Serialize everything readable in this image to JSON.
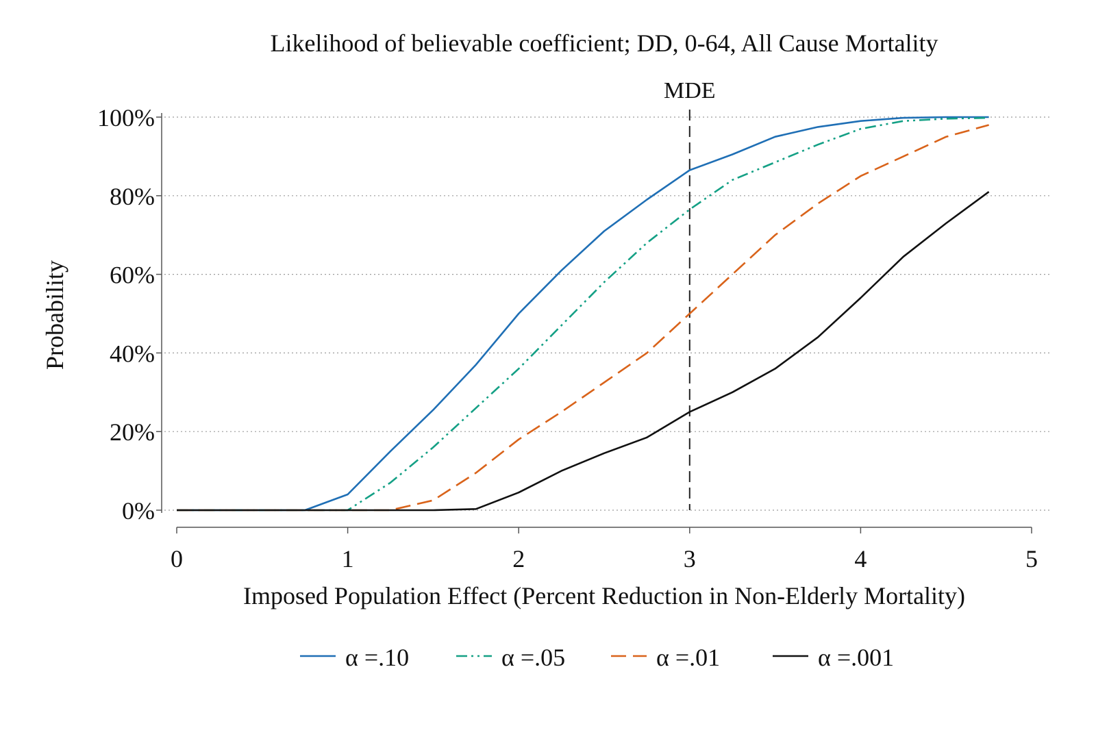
{
  "chart_data": {
    "type": "line",
    "title": "Likelihood of believable coefficient; DD, 0-64, All Cause Mortality",
    "xlabel": "Imposed Population Effect (Percent Reduction in Non-Elderly Mortality)",
    "ylabel": "Probability",
    "xlim": [
      0,
      5
    ],
    "ylim": [
      0,
      100
    ],
    "x_ticks": [
      "0",
      "1",
      "2",
      "3",
      "4",
      "5"
    ],
    "y_ticks": [
      "0%",
      "20%",
      "40%",
      "60%",
      "80%",
      "100%"
    ],
    "grid": true,
    "legend_position": "bottom",
    "annotations": [
      {
        "type": "vline",
        "x": 3,
        "label": "MDE"
      }
    ],
    "series": [
      {
        "name": "α =.10",
        "color": "#1f6fb5",
        "dash": "solid",
        "x": [
          0,
          0.25,
          0.5,
          0.75,
          1,
          1.25,
          1.5,
          1.75,
          2,
          2.25,
          2.5,
          2.75,
          3,
          3.25,
          3.5,
          3.75,
          4,
          4.25,
          4.5,
          4.75
        ],
        "values": [
          0,
          0,
          0,
          0,
          4,
          15,
          25.5,
          37,
          50,
          61,
          71,
          79,
          86.5,
          90.5,
          95,
          97.5,
          99,
          99.8,
          100,
          100
        ]
      },
      {
        "name": "α =.05",
        "color": "#14a085",
        "dash": "dash-dot-dot",
        "x": [
          0,
          0.25,
          0.5,
          0.75,
          1,
          1.25,
          1.5,
          1.75,
          2,
          2.25,
          2.5,
          2.75,
          3,
          3.25,
          3.5,
          3.75,
          4,
          4.25,
          4.5,
          4.75
        ],
        "values": [
          0,
          0,
          0,
          0,
          0,
          7,
          16,
          26,
          36,
          47,
          58,
          68,
          76.5,
          84,
          88.5,
          93,
          97,
          99,
          99.6,
          99.8
        ]
      },
      {
        "name": "α =.01",
        "color": "#d9631a",
        "dash": "long-dash",
        "x": [
          0,
          0.25,
          0.5,
          0.75,
          1,
          1.25,
          1.5,
          1.75,
          2,
          2.25,
          2.5,
          2.75,
          3,
          3.25,
          3.5,
          3.75,
          4,
          4.25,
          4.5,
          4.75
        ],
        "values": [
          0,
          0,
          0,
          0,
          0,
          0,
          2.5,
          9.5,
          18,
          25,
          32.5,
          40,
          50,
          60,
          70,
          78,
          85,
          90,
          95,
          98
        ]
      },
      {
        "name": "α =.001",
        "color": "#111111",
        "dash": "solid",
        "x": [
          0,
          0.25,
          0.5,
          0.75,
          1,
          1.25,
          1.5,
          1.75,
          2,
          2.25,
          2.5,
          2.75,
          3,
          3.25,
          3.5,
          3.75,
          4,
          4.25,
          4.5,
          4.75
        ],
        "values": [
          0,
          0,
          0,
          0,
          0,
          0,
          0,
          0.3,
          4.5,
          10,
          14.5,
          18.5,
          25,
          30,
          36,
          44,
          54,
          64.5,
          73,
          81
        ]
      }
    ]
  }
}
